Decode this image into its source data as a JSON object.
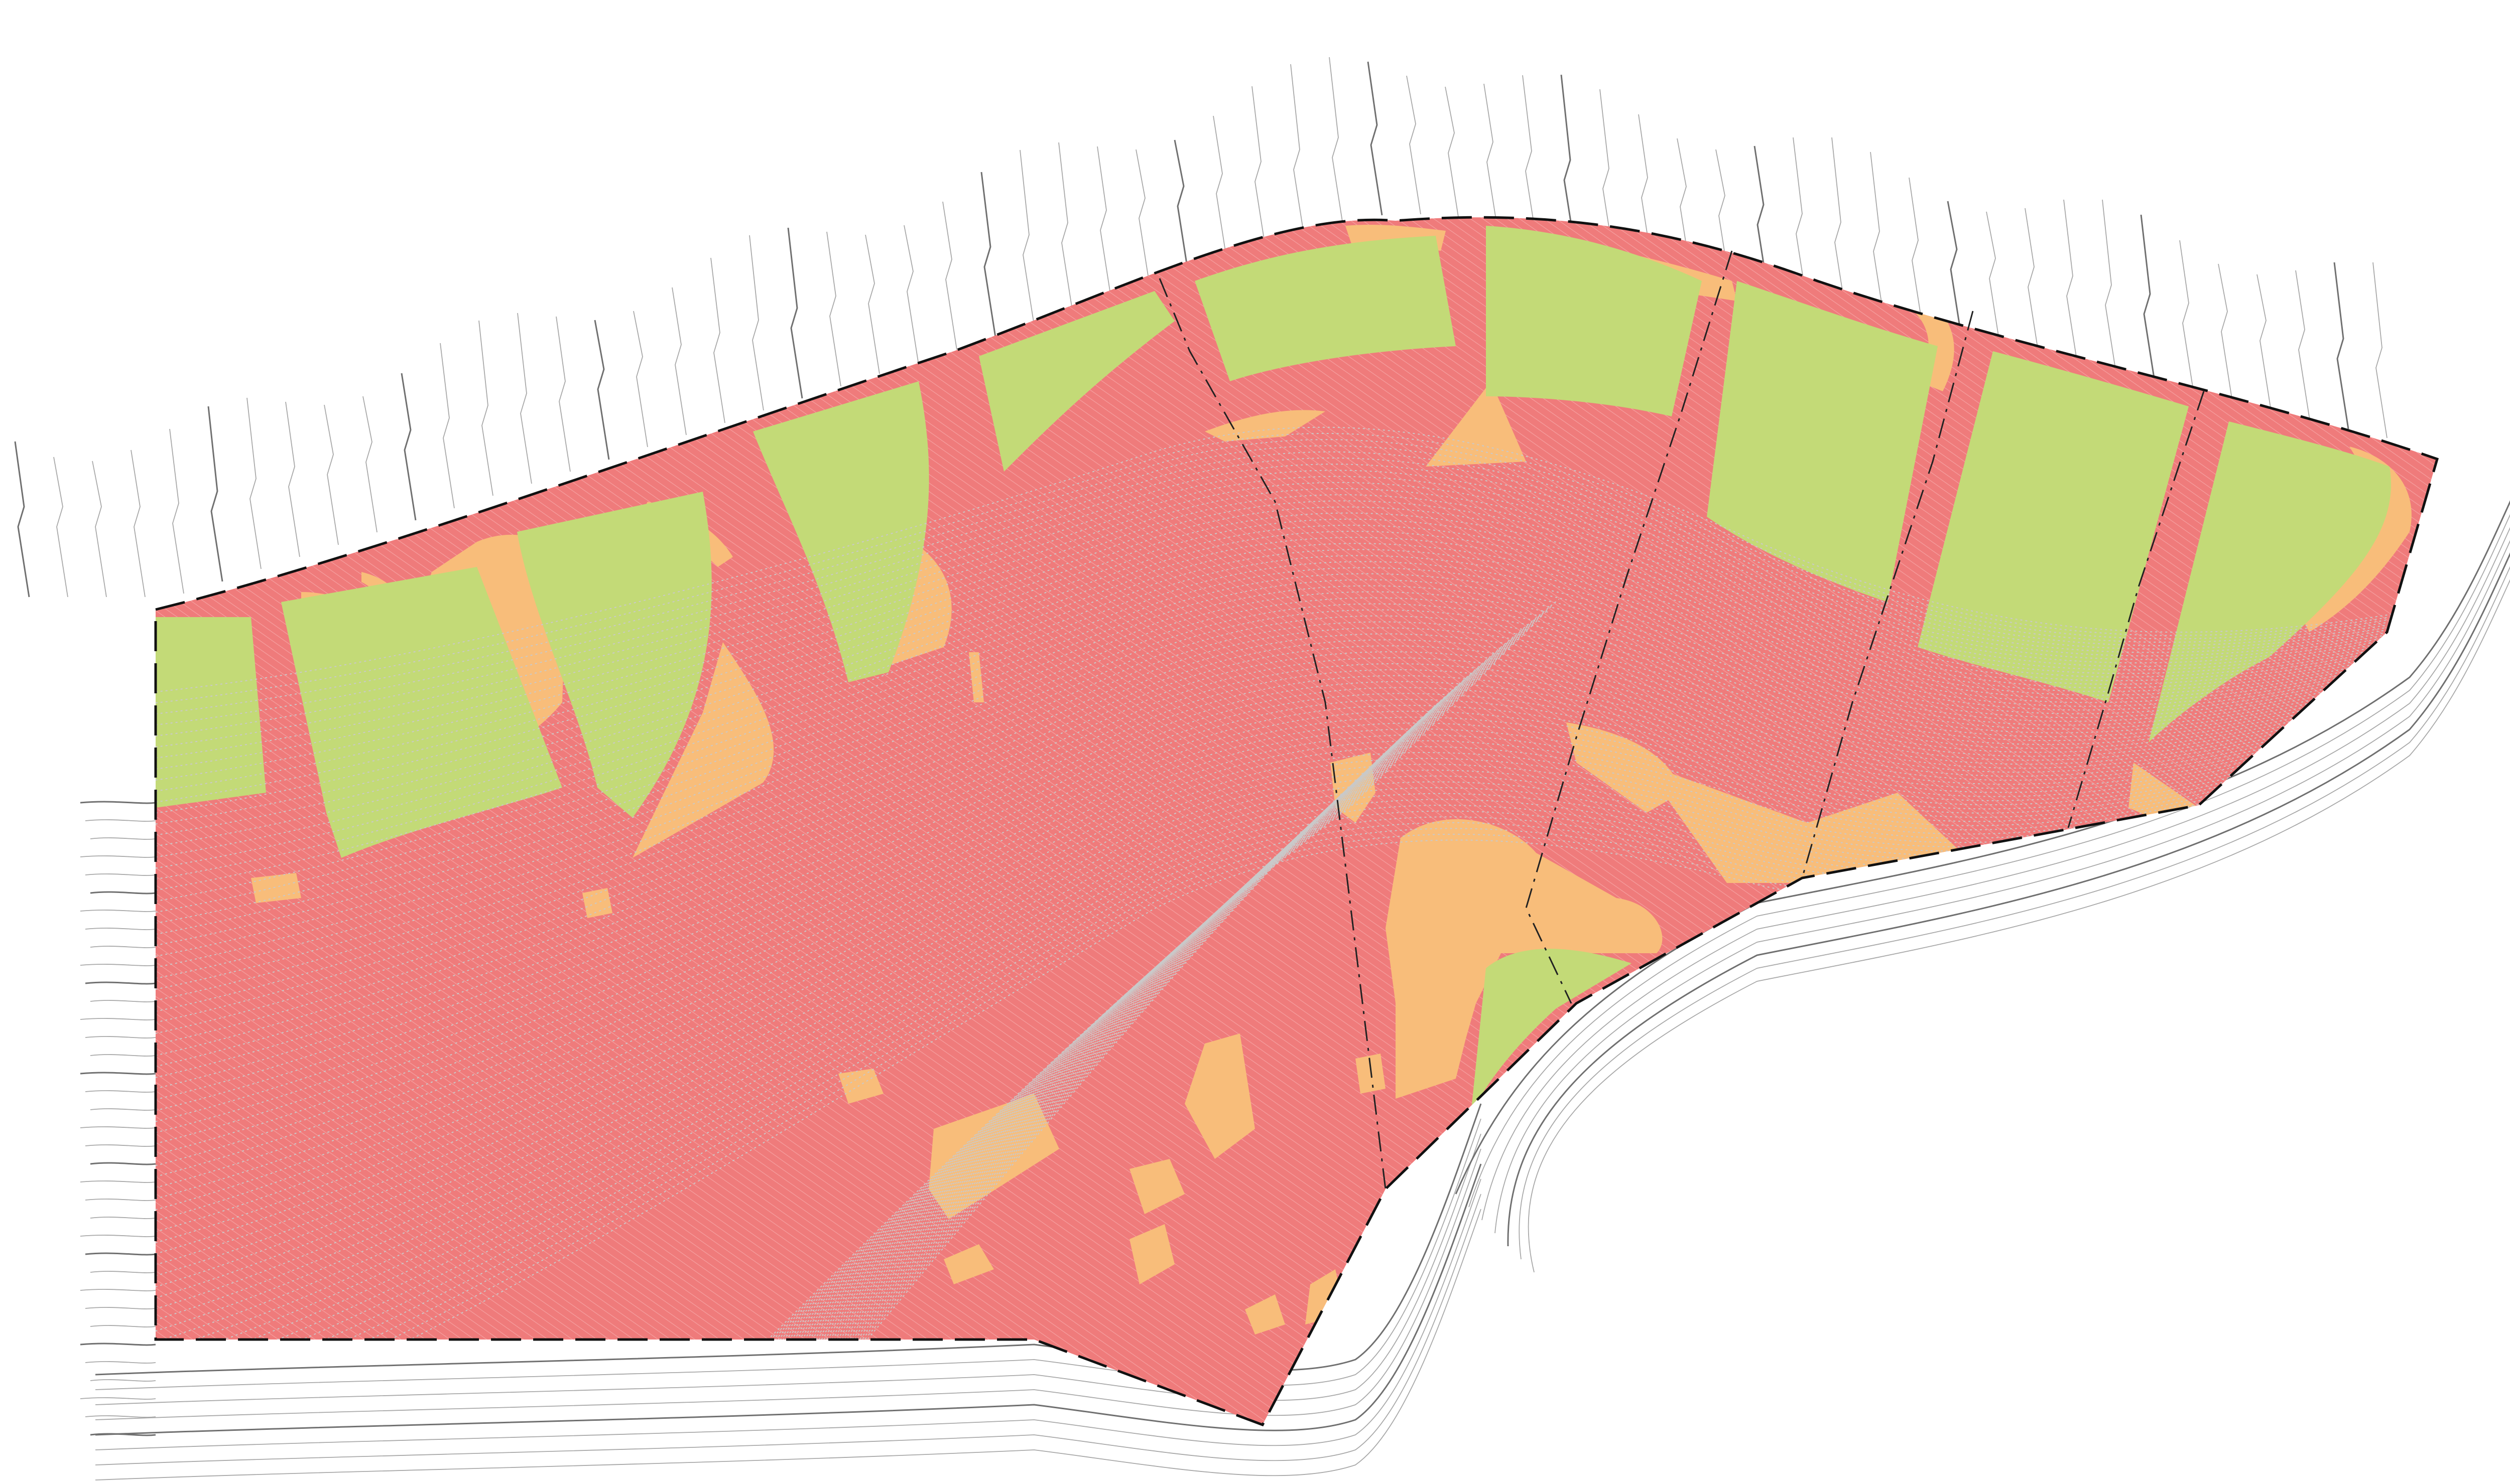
{
  "map": {
    "type": "site-slope-analysis-plan",
    "legend_shown": false,
    "text_labels_shown": false,
    "colors": {
      "background": "#ffffff",
      "slope_steep": "#ef7b7b",
      "slope_moderate": "#f8bd7a",
      "slope_gentle": "#c3da77",
      "site_boundary": "#111111",
      "lot_lines": "#222222",
      "contours_outside": "#9a9a9a",
      "contours_inside": "#c9c9c9"
    },
    "layers": [
      {
        "id": "outside-contours",
        "description_shown": false
      },
      {
        "id": "gentle-slope-fill"
      },
      {
        "id": "moderate-slope-fill"
      },
      {
        "id": "steep-slope-fill"
      },
      {
        "id": "inside-contours"
      },
      {
        "id": "lot-lines"
      },
      {
        "id": "site-boundary"
      }
    ]
  }
}
